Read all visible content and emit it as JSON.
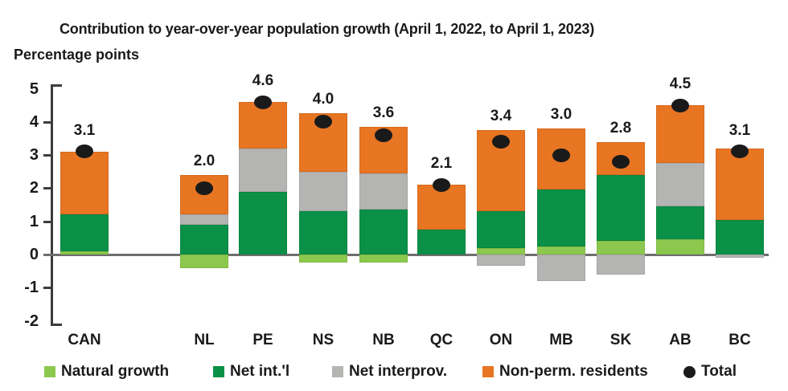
{
  "title": "Contribution to year-over-year population growth (April 1, 2022, to April 1, 2023)",
  "ylabel": "Percentage points",
  "colors": {
    "natural_growth": "#8DC84E",
    "net_international": "#0B9147",
    "net_interprovincial": "#B4B4B3",
    "non_permanent_residents": "#E87522",
    "total_dot": "#1A1A1A",
    "axis": "#3D3D3D",
    "zero_line": "#6E6E6E",
    "text": "#1A1A1A"
  },
  "legend": [
    {
      "label": "Natural growth",
      "swatch": "square",
      "color_key": "natural_growth"
    },
    {
      "label": "Net int.'l",
      "swatch": "square",
      "color_key": "net_international"
    },
    {
      "label": "Net interprov.",
      "swatch": "square",
      "color_key": "net_interprovincial"
    },
    {
      "label": "Non-perm. residents",
      "swatch": "square",
      "color_key": "non_permanent_residents"
    },
    {
      "label": "Total",
      "swatch": "circle",
      "color_key": "total_dot"
    }
  ],
  "chart_data": {
    "type": "bar",
    "stacked": true,
    "title": "Contribution to year-over-year population growth (April 1, 2022, to April 1, 2023)",
    "xlabel": "",
    "ylabel": "Percentage points",
    "ylim": [
      -2,
      5
    ],
    "yticks": [
      "5",
      "4",
      "3",
      "2",
      "1",
      "0",
      "-1",
      "-2"
    ],
    "ytick_values": [
      5,
      4,
      3,
      2,
      1,
      0,
      -1,
      -2
    ],
    "grid": false,
    "legend_position": "bottom",
    "categories": [
      "CAN",
      "NL",
      "PE",
      "NS",
      "NB",
      "QC",
      "ON",
      "MB",
      "SK",
      "AB",
      "BC"
    ],
    "series": [
      {
        "name": "Natural growth",
        "color_key": "natural_growth",
        "values": [
          0.1,
          -0.4,
          0.0,
          -0.25,
          -0.25,
          0.0,
          0.2,
          0.25,
          0.4,
          0.45,
          0.0
        ]
      },
      {
        "name": "Net int.'l",
        "color_key": "net_international",
        "values": [
          1.1,
          0.9,
          1.9,
          1.3,
          1.35,
          0.75,
          1.1,
          1.7,
          2.0,
          1.0,
          1.05
        ]
      },
      {
        "name": "Net interprov.",
        "color_key": "net_interprovincial",
        "values": [
          0.0,
          0.3,
          1.3,
          1.2,
          1.1,
          0.0,
          -0.35,
          -0.8,
          -0.6,
          1.3,
          -0.1
        ]
      },
      {
        "name": "Non-perm. residents",
        "color_key": "non_permanent_residents",
        "values": [
          1.9,
          1.2,
          1.4,
          1.75,
          1.4,
          1.35,
          2.45,
          1.85,
          1.0,
          1.75,
          2.15
        ]
      }
    ],
    "totals": [
      3.1,
      2.0,
      4.6,
      4.0,
      3.6,
      2.1,
      3.4,
      3.0,
      2.8,
      4.5,
      3.1
    ],
    "totals_labels": [
      "3.1",
      "2.0",
      "4.6",
      "4.0",
      "3.6",
      "2.1",
      "3.4",
      "3.0",
      "2.8",
      "4.5",
      "3.1"
    ]
  }
}
